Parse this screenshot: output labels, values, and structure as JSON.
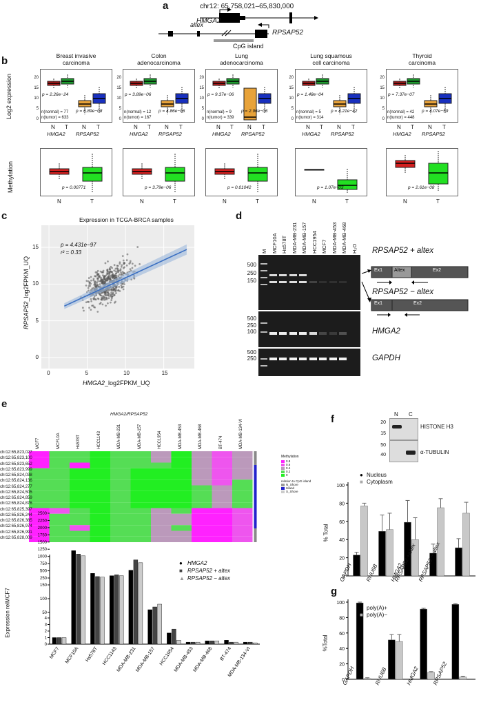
{
  "panel_a": {
    "label": "a",
    "coords": "chr12: 65,758,021–65,830,000",
    "gene1": "HMGA2",
    "gene2": "RPSAP52",
    "exon_label": "altex",
    "cpg_label": "CpG island"
  },
  "panel_b": {
    "label": "b",
    "ylabel_expr": "Log2 expression",
    "ylabel_meth": "Methylation",
    "genes": [
      "HMGA2",
      "RPSAP52"
    ],
    "nt": [
      "N",
      "T",
      "N",
      "T"
    ],
    "cancers": [
      {
        "title": "Breast invasive\ncarcinoma",
        "p_hmga2": "p = 2.26e−24",
        "p_rpsap": "p = 6.89e−08",
        "n_normal": "n(normal) = 77",
        "n_tumor": "n(tumor) = 633",
        "p_meth": "p = 0.00771"
      },
      {
        "title": "Colon\nadenocarcinoma",
        "p_hmga2": "p = 3.89e−06",
        "p_rpsap": "p = 4.86e−06",
        "n_normal": "n(normal) = 12",
        "n_tumor": "n(tumor) = 167",
        "p_meth": "p = 3.79e−06"
      },
      {
        "title": "Lung\nadenocarcinoma",
        "p_hmga2": "p = 9.37e−06",
        "p_rpsap": "p = 2.96e−06",
        "n_normal": "n(normal) = 9",
        "n_tumor": "n(tumor) = 339",
        "p_meth": "p = 0.01042"
      },
      {
        "title": "Lung squamous\ncell carcinoma",
        "p_hmga2": "p = 1.48e−04",
        "p_rpsap": "p = 4.21e−42",
        "n_normal": "n(normal) = 5",
        "n_tumor": "n(tumor) = 314",
        "p_meth": "p = 1.07e−03"
      },
      {
        "title": "Thyroid\ncarcinoma",
        "p_hmga2": "p = 7.37e−07",
        "p_rpsap": "p = 4.07e−59",
        "n_normal": "n(normal) = 42",
        "n_tumor": "n(tumor) = 448",
        "p_meth": "p = 2.61e−08"
      }
    ]
  },
  "panel_c": {
    "label": "c",
    "title": "Expression in TCGA-BRCA samples",
    "stat_p": "p = 4.431e−97",
    "stat_r": "r² = 0.33",
    "xlabel_gene": "HMGA2",
    "xlabel_suffix": "_log2FPKM_UQ",
    "ylabel_gene": "RPSAP52",
    "ylabel_suffix": "_log2FPKM_UQ",
    "xticks": [
      "0",
      "5",
      "10",
      "15"
    ],
    "yticks": [
      "0",
      "5",
      "10",
      "15"
    ]
  },
  "panel_d": {
    "label": "d",
    "lanes": [
      "M",
      "MCF10A",
      "Hs578T",
      "MDA-MB-231",
      "MDA-MB-157",
      "HCC1954",
      "MCF7",
      "MDA-MB-453",
      "MDA-MB-468",
      "H₂O"
    ],
    "markers_top": [
      "500",
      "250",
      "150"
    ],
    "markers_mid": [
      "500",
      "250",
      "100"
    ],
    "markers_bot": [
      "500",
      "250"
    ],
    "label_plus": "RPSAP52 + altex",
    "label_minus": "RPSAP52 − altex",
    "label_hmga2": "HMGA2",
    "label_gapdh": "GAPDH",
    "ex1": "Ex1",
    "altex": "Altex",
    "ex2": "Ex2"
  },
  "panel_e": {
    "label": "e",
    "title": "HMGA2/RPSAP52",
    "samples": [
      "MCF7",
      "MCF10A",
      "Hs578T",
      "HCC1143",
      "MDA-MB-231",
      "MDA-MB-157",
      "HCC1954",
      "MDA-MB-453",
      "MDA-MB-468",
      "BT-474",
      "MDA-MB-134-VI"
    ],
    "rows": [
      "chr12:65,823,027",
      "chr12:65,823,100",
      "chr12:65,823,652",
      "chr12:65,823,999",
      "chr12:65,824,038",
      "chr12:65,824,136",
      "chr12:65,824,277",
      "chr12:65,824,505",
      "chr12:65,824,859",
      "chr12:65,824,876",
      "chr12:65,825,397",
      "chr12:65,826,244",
      "chr12:65,826,385",
      "chr12:65,826,974",
      "chr12:65,826,991",
      "chr12:65,828,009"
    ],
    "legend_title": "Methylation",
    "legend_vals": [
      "0.8",
      "0.6",
      "0.4",
      "0.2",
      "0"
    ],
    "legend2_title": "relation to CpG island",
    "legend2_vals": [
      "N_Shore",
      "Island",
      "S_Shore"
    ],
    "bar_ylabel": "Expression relMCF7",
    "bar_yticks": [
      "0",
      "1",
      "2",
      "3",
      "4",
      "50",
      "100",
      "150",
      "250",
      "500",
      "750",
      "1000",
      "1250",
      "1500",
      "1750",
      "2000",
      "2250",
      "2500"
    ],
    "legend_items": [
      "HMGA2",
      "RPSAP52 + altex",
      "RPSAP52 − altex"
    ]
  },
  "panel_f": {
    "label": "f",
    "blot_lanes": [
      "N",
      "C"
    ],
    "blot_markers_top": [
      "20",
      "15"
    ],
    "blot_markers_bot": [
      "50",
      "40"
    ],
    "blot_labels": [
      "HISTONE H3",
      "α-TUBULIN"
    ],
    "legend": [
      "Nucleus",
      "Cytoplasm"
    ],
    "ylabel": "% Total",
    "yticks": [
      "0",
      "20",
      "40",
      "60",
      "80",
      "100"
    ],
    "categories": [
      "GAPDH",
      "RNU6B",
      "HMGA2",
      "RPSAP52 +altex",
      "RPSAP52 − altex"
    ]
  },
  "panel_g": {
    "label": "g",
    "legend": [
      "poly(A)+",
      "poly(A)−"
    ],
    "ylabel": "%Total",
    "yticks": [
      "0",
      "20",
      "40",
      "60",
      "80",
      "100"
    ],
    "categories": [
      "GAPDH",
      "RNU6B",
      "HMGA2",
      "RPSAP52"
    ]
  },
  "chart_data": [
    {
      "type": "bar",
      "panel": "f",
      "categories": [
        "GAPDH",
        "RNU6B",
        "HMGA2",
        "RPSAP52 +altex",
        "RPSAP52 − altex"
      ],
      "series": [
        {
          "name": "Nucleus",
          "values": [
            23,
            49,
            59,
            25,
            31
          ],
          "errors": [
            3,
            18,
            24,
            10,
            10
          ]
        },
        {
          "name": "Cytoplasm",
          "values": [
            77,
            51,
            40,
            75,
            69
          ],
          "errors": [
            3,
            18,
            24,
            10,
            12
          ]
        }
      ],
      "ylabel": "% Total",
      "ylim": [
        0,
        100
      ],
      "colors": [
        "#000000",
        "#c8c8c8"
      ]
    },
    {
      "type": "bar",
      "panel": "g",
      "categories": [
        "GAPDH",
        "RNU6B",
        "HMGA2",
        "RPSAP52"
      ],
      "series": [
        {
          "name": "poly(A)+",
          "values": [
            99,
            51,
            91,
            97
          ],
          "errors": [
            1,
            7,
            1,
            1
          ]
        },
        {
          "name": "poly(A)−",
          "values": [
            1,
            49,
            9,
            3
          ],
          "errors": [
            1,
            9,
            1,
            1
          ]
        }
      ],
      "ylabel": "%Total",
      "ylim": [
        0,
        100
      ],
      "colors": [
        "#000000",
        "#c8c8c8"
      ]
    },
    {
      "type": "bar",
      "panel": "e",
      "categories": [
        "MCF7",
        "MCF10A",
        "Hs578T",
        "HCC1143",
        "MDA-MB-231",
        "MDA-MB-157",
        "HCC1954",
        "MDA-MB-453",
        "MDA-MB-468",
        "BT-474",
        "MDA-MB-134-VI"
      ],
      "series": [
        {
          "name": "HMGA2",
          "values": [
            1,
            1200,
            410,
            330,
            520,
            60,
            1.7,
            0.3,
            0.5,
            0.6,
            0.3
          ]
        },
        {
          "name": "RPSAP52 + altex",
          "values": [
            1,
            1080,
            300,
            360,
            880,
            70,
            2.3,
            0.3,
            0.5,
            0.3,
            0.3
          ]
        },
        {
          "name": "RPSAP52 − altex",
          "values": [
            1,
            1020,
            280,
            330,
            780,
            80,
            0.6,
            0.3,
            0.5,
            0.3,
            0.2
          ]
        }
      ],
      "ylabel": "Expression relMCF7"
    },
    {
      "type": "scatter",
      "panel": "c",
      "title": "Expression in TCGA-BRCA samples",
      "xlabel": "HMGA2_log2FPKM_UQ",
      "ylabel": "RPSAP52_log2FPKM_UQ",
      "xlim": [
        0,
        19
      ],
      "ylim": [
        0,
        17
      ],
      "fit_line": {
        "x": [
          2,
          18
        ],
        "y": [
          7,
          14.7
        ]
      }
    }
  ]
}
